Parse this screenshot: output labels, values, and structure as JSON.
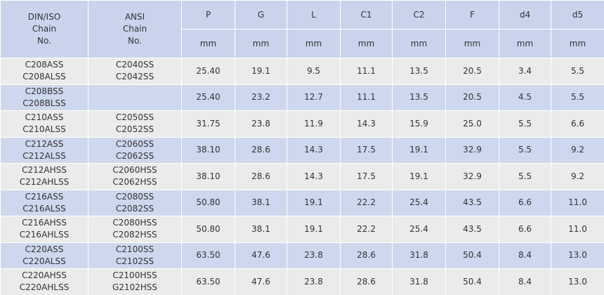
{
  "table": {
    "header": {
      "din": [
        "DIN/ISO",
        "Chain",
        "No."
      ],
      "ansi": [
        "ANSI",
        "Chain",
        "No."
      ],
      "columns": [
        {
          "name": "P",
          "unit": "mm"
        },
        {
          "name": "G",
          "unit": "mm"
        },
        {
          "name": "L",
          "unit": "mm"
        },
        {
          "name": "C1",
          "unit": "mm"
        },
        {
          "name": "C2",
          "unit": "mm"
        },
        {
          "name": "F",
          "unit": "mm"
        },
        {
          "name": "d4",
          "unit": "mm"
        },
        {
          "name": "d5",
          "unit": "mm"
        }
      ]
    },
    "rows": [
      {
        "din": [
          "C208ASS",
          "C208ALSS"
        ],
        "ansi": [
          "C2040SS",
          "C2042SS"
        ],
        "values": [
          "25.40",
          "19.1",
          "9.5",
          "11.1",
          "13.5",
          "20.5",
          "3.4",
          "5.5"
        ]
      },
      {
        "din": [
          "C208BSS",
          "C208BLSS"
        ],
        "ansi": [],
        "values": [
          "25.40",
          "23.2",
          "12.7",
          "11.1",
          "13.5",
          "20.5",
          "4.5",
          "5.5"
        ]
      },
      {
        "din": [
          "C210ASS",
          "C210ALSS"
        ],
        "ansi": [
          "C2050SS",
          "C2052SS"
        ],
        "values": [
          "31.75",
          "23.8",
          "11.9",
          "14.3",
          "15.9",
          "25.0",
          "5.5",
          "6.6"
        ]
      },
      {
        "din": [
          "C212ASS",
          "C212ALSS"
        ],
        "ansi": [
          "C2060SS",
          "C2062SS"
        ],
        "values": [
          "38.10",
          "28.6",
          "14.3",
          "17.5",
          "19.1",
          "32.9",
          "5.5",
          "9.2"
        ]
      },
      {
        "din": [
          "C212AHSS",
          "C212AHLSS"
        ],
        "ansi": [
          "C2060HSS",
          "C2062HSS"
        ],
        "values": [
          "38.10",
          "28.6",
          "14.3",
          "17.5",
          "19.1",
          "32.9",
          "5.5",
          "9.2"
        ]
      },
      {
        "din": [
          "C216ASS",
          "C216ALSS"
        ],
        "ansi": [
          "C2080SS",
          "C2082SS"
        ],
        "values": [
          "50.80",
          "38.1",
          "19.1",
          "22.2",
          "25.4",
          "43.5",
          "6.6",
          "11.0"
        ]
      },
      {
        "din": [
          "C216AHSS",
          "C216AHLSS"
        ],
        "ansi": [
          "C2080HSS",
          "C2082HSS"
        ],
        "values": [
          "50.80",
          "38.1",
          "19.1",
          "22.2",
          "25.4",
          "43.5",
          "6.6",
          "11.0"
        ]
      },
      {
        "din": [
          "C220ASS",
          "C220ALSS"
        ],
        "ansi": [
          "C2100SS",
          "C2102SS"
        ],
        "values": [
          "63.50",
          "47.6",
          "23.8",
          "28.6",
          "31.8",
          "50.4",
          "8.4",
          "13.0"
        ]
      },
      {
        "din": [
          "C220AHSS",
          "C220AHLSS"
        ],
        "ansi": [
          "C2100HSS",
          "G2102HSS"
        ],
        "values": [
          "63.50",
          "47.6",
          "23.8",
          "28.6",
          "31.8",
          "50.4",
          "8.4",
          "13.0"
        ]
      }
    ]
  }
}
